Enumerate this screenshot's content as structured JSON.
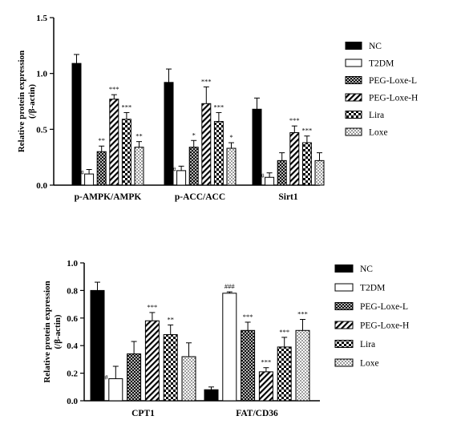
{
  "chart_data": [
    {
      "type": "bar",
      "ylabel": [
        "Relative protein expression",
        "(/β-actin)"
      ],
      "ylim": [
        0,
        1.5
      ],
      "yticks": [
        "0.0",
        "0.5",
        "1.0",
        "1.5"
      ],
      "yticks_values": [
        0,
        0.5,
        1.0,
        1.5
      ],
      "categories": [
        "p-AMPK/AMPK",
        "p-ACC/ACC",
        "Sirt1"
      ],
      "legend": "right",
      "series": [
        {
          "name": "NC",
          "pattern": "solid",
          "values": [
            1.09,
            0.92,
            0.68
          ],
          "errors": [
            0.08,
            0.12,
            0.1
          ],
          "labels": [
            "",
            "",
            ""
          ]
        },
        {
          "name": "T2DM",
          "pattern": "white",
          "values": [
            0.1,
            0.13,
            0.07
          ],
          "errors": [
            0.04,
            0.04,
            0.04
          ],
          "labels": [
            "###",
            "###",
            "###"
          ]
        },
        {
          "name": "PEG-Loxe-L",
          "pattern": "crosshatch",
          "values": [
            0.3,
            0.34,
            0.22
          ],
          "errors": [
            0.05,
            0.06,
            0.07
          ],
          "labels": [
            "**",
            "*",
            ""
          ]
        },
        {
          "name": "PEG-Loxe-H",
          "pattern": "diagonal",
          "values": [
            0.77,
            0.73,
            0.47
          ],
          "errors": [
            0.04,
            0.15,
            0.06
          ],
          "labels": [
            "***",
            "***",
            "***"
          ]
        },
        {
          "name": "Lira",
          "pattern": "checker",
          "values": [
            0.59,
            0.57,
            0.38
          ],
          "errors": [
            0.06,
            0.08,
            0.06
          ],
          "labels": [
            "***",
            "***",
            "***"
          ]
        },
        {
          "name": "Loxe",
          "pattern": "dotted",
          "values": [
            0.34,
            0.33,
            0.22
          ],
          "errors": [
            0.05,
            0.05,
            0.07
          ],
          "labels": [
            "**",
            "*",
            ""
          ]
        }
      ]
    },
    {
      "type": "bar",
      "ylabel": [
        "Relative protein expression",
        "(/β-actin)"
      ],
      "ylim": [
        0,
        1.0
      ],
      "yticks": [
        "0.0",
        "0.2",
        "0.4",
        "0.6",
        "0.8",
        "1.0"
      ],
      "yticks_values": [
        0,
        0.2,
        0.4,
        0.6,
        0.8,
        1.0
      ],
      "categories": [
        "CPT1",
        "FAT/CD36"
      ],
      "legend": "right",
      "series": [
        {
          "name": "NC",
          "pattern": "solid",
          "values": [
            0.8,
            0.08
          ],
          "errors": [
            0.06,
            0.02
          ],
          "labels": [
            "",
            ""
          ]
        },
        {
          "name": "T2DM",
          "pattern": "white",
          "values": [
            0.16,
            0.78
          ],
          "errors": [
            0.09,
            0.01
          ],
          "labels": [
            "###",
            "###"
          ]
        },
        {
          "name": "PEG-Loxe-L",
          "pattern": "crosshatch",
          "values": [
            0.34,
            0.51
          ],
          "errors": [
            0.09,
            0.06
          ],
          "labels": [
            "",
            "***"
          ]
        },
        {
          "name": "PEG-Loxe-H",
          "pattern": "diagonal",
          "values": [
            0.58,
            0.21
          ],
          "errors": [
            0.06,
            0.03
          ],
          "labels": [
            "***",
            "***"
          ]
        },
        {
          "name": "Lira",
          "pattern": "checker",
          "values": [
            0.48,
            0.39
          ],
          "errors": [
            0.07,
            0.07
          ],
          "labels": [
            "**",
            "***"
          ]
        },
        {
          "name": "Loxe",
          "pattern": "dotted",
          "values": [
            0.32,
            0.51
          ],
          "errors": [
            0.1,
            0.08
          ],
          "labels": [
            "",
            "***"
          ]
        }
      ]
    }
  ]
}
